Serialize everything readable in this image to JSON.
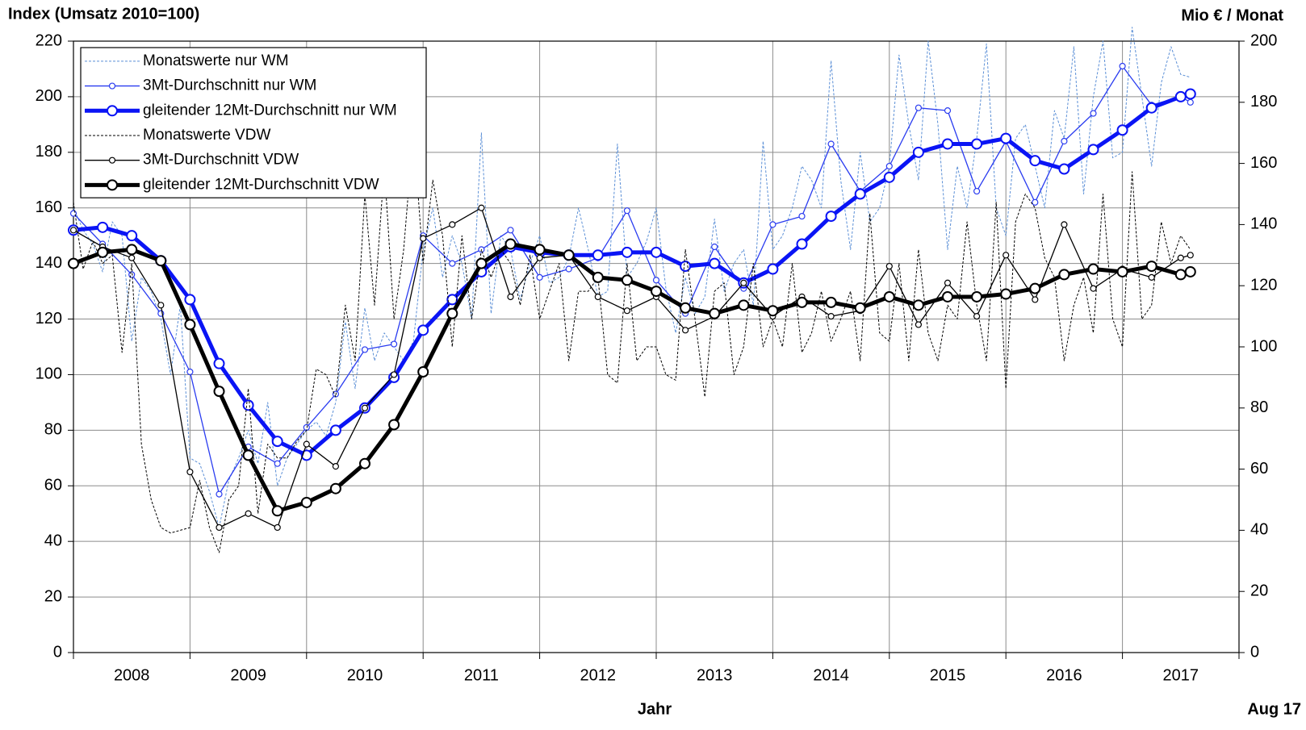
{
  "chart_data": {
    "type": "line",
    "title_left": "Index (Umsatz 2010=100)",
    "title_right": "Mio € / Monat",
    "xlabel": "Jahr",
    "note": "Aug 17",
    "xlim": [
      2008,
      2018
    ],
    "xticks": [
      2008,
      2009,
      2010,
      2011,
      2012,
      2013,
      2014,
      2015,
      2016,
      2017,
      2018
    ],
    "categories": [
      "2008",
      "2009",
      "2010",
      "2011",
      "2012",
      "2013",
      "2014",
      "2015",
      "2016",
      "2017"
    ],
    "ylim": [
      0,
      220
    ],
    "yticks": [
      0,
      20,
      40,
      60,
      80,
      100,
      120,
      140,
      160,
      180,
      200,
      220
    ],
    "y2lim": [
      0,
      200
    ],
    "y2ticks": [
      0,
      20,
      40,
      60,
      80,
      100,
      120,
      140,
      160,
      180,
      200
    ],
    "grid": true,
    "legend": "upper left",
    "series": [
      {
        "name": "Monatswerte  nur WM",
        "color": "#5b8fd6",
        "line_style": "dashed",
        "line_width": 1,
        "marker_size": 0,
        "x": [
          2008,
          2008.083,
          2008.167,
          2008.25,
          2008.333,
          2008.417,
          2008.5,
          2008.583,
          2008.667,
          2008.75,
          2008.833,
          2008.917,
          2009,
          2009.083,
          2009.167,
          2009.25,
          2009.333,
          2009.417,
          2009.5,
          2009.583,
          2009.667,
          2009.75,
          2009.833,
          2009.917,
          2010,
          2010.083,
          2010.167,
          2010.25,
          2010.333,
          2010.417,
          2010.5,
          2010.583,
          2010.667,
          2010.75,
          2010.833,
          2010.917,
          2011,
          2011.083,
          2011.167,
          2011.25,
          2011.333,
          2011.417,
          2011.5,
          2011.583,
          2011.667,
          2011.75,
          2011.833,
          2011.917,
          2012,
          2012.083,
          2012.167,
          2012.25,
          2012.333,
          2012.417,
          2012.5,
          2012.583,
          2012.667,
          2012.75,
          2012.833,
          2012.917,
          2013,
          2013.083,
          2013.167,
          2013.25,
          2013.333,
          2013.417,
          2013.5,
          2013.583,
          2013.667,
          2013.75,
          2013.833,
          2013.917,
          2014,
          2014.083,
          2014.167,
          2014.25,
          2014.333,
          2014.417,
          2014.5,
          2014.583,
          2014.667,
          2014.75,
          2014.833,
          2014.917,
          2015,
          2015.083,
          2015.167,
          2015.25,
          2015.333,
          2015.417,
          2015.5,
          2015.583,
          2015.667,
          2015.75,
          2015.833,
          2015.917,
          2016,
          2016.083,
          2016.167,
          2016.25,
          2016.333,
          2016.417,
          2016.5,
          2016.583,
          2016.667,
          2016.75,
          2016.833,
          2016.917,
          2017,
          2017.083,
          2017.167,
          2017.25,
          2017.333,
          2017.417,
          2017.5,
          2017.583
        ],
        "values": [
          160,
          152,
          147,
          137,
          155,
          150,
          112,
          135,
          130,
          120,
          100,
          125,
          70,
          68,
          58,
          45,
          62,
          70,
          80,
          68,
          90,
          60,
          70,
          75,
          80,
          83,
          78,
          90,
          119,
          95,
          124,
          105,
          115,
          110,
          105,
          112,
          145,
          160,
          135,
          150,
          140,
          120,
          187,
          122,
          150,
          145,
          127,
          140,
          150,
          133,
          135,
          142,
          160,
          145,
          128,
          130,
          183,
          135,
          140,
          148,
          160,
          131,
          115,
          135,
          122,
          128,
          156,
          130,
          140,
          145,
          125,
          184,
          145,
          150,
          160,
          175,
          170,
          160,
          213,
          170,
          145,
          180,
          155,
          160,
          175,
          215,
          190,
          170,
          220,
          190,
          145,
          175,
          160,
          185,
          219,
          160,
          150,
          185,
          190,
          175,
          160,
          195,
          185,
          218,
          165,
          200,
          220,
          178,
          180,
          225,
          200,
          175,
          205,
          218,
          208,
          207
        ]
      },
      {
        "name": "3Mt-Durchschnitt  nur WM",
        "color": "#2a3cf0",
        "line_style": "solid",
        "line_width": 1.3,
        "marker_size": 3.5,
        "x": [
          2008,
          2008.25,
          2008.5,
          2008.75,
          2009,
          2009.25,
          2009.5,
          2009.75,
          2010,
          2010.25,
          2010.5,
          2010.75,
          2011,
          2011.25,
          2011.5,
          2011.75,
          2012,
          2012.25,
          2012.5,
          2012.75,
          2013,
          2013.25,
          2013.5,
          2013.75,
          2014,
          2014.25,
          2014.5,
          2014.75,
          2015,
          2015.25,
          2015.5,
          2015.75,
          2016,
          2016.25,
          2016.5,
          2016.75,
          2017,
          2017.25,
          2017.5,
          2017.583
        ],
        "values": [
          158,
          147,
          136,
          122,
          101,
          57,
          74,
          68,
          81,
          93,
          109,
          111,
          150,
          140,
          145,
          152,
          135,
          138,
          142,
          159,
          134,
          122,
          146,
          131,
          154,
          157,
          183,
          166,
          175,
          196,
          195,
          166,
          184,
          162,
          184,
          194,
          211,
          197,
          200,
          198
        ]
      },
      {
        "name": "gleitender  12Mt-Durchschnitt  nur WM",
        "color": "#0a14f5",
        "line_style": "solid",
        "line_width": 5,
        "marker_size": 6,
        "x": [
          2008,
          2008.25,
          2008.5,
          2008.75,
          2009,
          2009.25,
          2009.5,
          2009.75,
          2010,
          2010.25,
          2010.5,
          2010.75,
          2011,
          2011.25,
          2011.5,
          2011.75,
          2012,
          2012.25,
          2012.5,
          2012.75,
          2013,
          2013.25,
          2013.5,
          2013.75,
          2014,
          2014.25,
          2014.5,
          2014.75,
          2015,
          2015.25,
          2015.5,
          2015.75,
          2016,
          2016.25,
          2016.5,
          2016.75,
          2017,
          2017.25,
          2017.5,
          2017.583
        ],
        "values": [
          152,
          153,
          150,
          141,
          127,
          104,
          89,
          76,
          71,
          80,
          88,
          99,
          116,
          127,
          137,
          146,
          144,
          143,
          143,
          144,
          144,
          139,
          140,
          133,
          138,
          147,
          157,
          165,
          171,
          180,
          183,
          183,
          185,
          177,
          174,
          181,
          188,
          196,
          200,
          201
        ]
      },
      {
        "name": "Monatswerte  VDW",
        "color": "#000000",
        "line_style": "dashed",
        "line_width": 1,
        "marker_size": 0,
        "x": [
          2008,
          2008.083,
          2008.167,
          2008.25,
          2008.333,
          2008.417,
          2008.5,
          2008.583,
          2008.667,
          2008.75,
          2008.833,
          2008.917,
          2009,
          2009.083,
          2009.167,
          2009.25,
          2009.333,
          2009.417,
          2009.5,
          2009.583,
          2009.667,
          2009.75,
          2009.833,
          2009.917,
          2010,
          2010.083,
          2010.167,
          2010.25,
          2010.333,
          2010.417,
          2010.5,
          2010.583,
          2010.667,
          2010.75,
          2010.833,
          2010.917,
          2011,
          2011.083,
          2011.167,
          2011.25,
          2011.333,
          2011.417,
          2011.5,
          2011.583,
          2011.667,
          2011.75,
          2011.833,
          2011.917,
          2012,
          2012.083,
          2012.167,
          2012.25,
          2012.333,
          2012.417,
          2012.5,
          2012.583,
          2012.667,
          2012.75,
          2012.833,
          2012.917,
          2013,
          2013.083,
          2013.167,
          2013.25,
          2013.333,
          2013.417,
          2013.5,
          2013.583,
          2013.667,
          2013.75,
          2013.833,
          2013.917,
          2014,
          2014.083,
          2014.167,
          2014.25,
          2014.333,
          2014.417,
          2014.5,
          2014.583,
          2014.667,
          2014.75,
          2014.833,
          2014.917,
          2015,
          2015.083,
          2015.167,
          2015.25,
          2015.333,
          2015.417,
          2015.5,
          2015.583,
          2015.667,
          2015.75,
          2015.833,
          2015.917,
          2016,
          2016.083,
          2016.167,
          2016.25,
          2016.333,
          2016.417,
          2016.5,
          2016.583,
          2016.667,
          2016.75,
          2016.833,
          2016.917,
          2017,
          2017.083,
          2017.167,
          2017.25,
          2017.333,
          2017.417,
          2017.5,
          2017.583
        ],
        "values": [
          162,
          138,
          148,
          140,
          143,
          108,
          140,
          75,
          55,
          45,
          43,
          44,
          45,
          62,
          45,
          36,
          55,
          60,
          95,
          50,
          75,
          70,
          70,
          76,
          80,
          102,
          100,
          92,
          125,
          105,
          165,
          125,
          175,
          120,
          145,
          188,
          140,
          170,
          150,
          110,
          150,
          120,
          145,
          135,
          145,
          140,
          125,
          143,
          120,
          130,
          140,
          105,
          130,
          130,
          135,
          100,
          97,
          140,
          105,
          110,
          110,
          100,
          98,
          145,
          120,
          92,
          130,
          133,
          100,
          110,
          140,
          110,
          120,
          110,
          140,
          108,
          115,
          130,
          112,
          120,
          130,
          105,
          158,
          115,
          112,
          140,
          105,
          145,
          115,
          105,
          125,
          120,
          155,
          125,
          105,
          162,
          95,
          155,
          165,
          160,
          142,
          135,
          105,
          125,
          135,
          115,
          165,
          120,
          110,
          173,
          120,
          125,
          155,
          140,
          150,
          145
        ]
      },
      {
        "name": "3Mt-Durchschnitt  VDW",
        "color": "#000000",
        "line_style": "solid",
        "line_width": 1.3,
        "marker_size": 3.5,
        "x": [
          2008,
          2008.25,
          2008.5,
          2008.75,
          2009,
          2009.25,
          2009.5,
          2009.75,
          2010,
          2010.25,
          2010.5,
          2010.75,
          2011,
          2011.25,
          2011.5,
          2011.75,
          2012,
          2012.25,
          2012.5,
          2012.75,
          2013,
          2013.25,
          2013.5,
          2013.75,
          2014,
          2014.25,
          2014.5,
          2014.75,
          2015,
          2015.25,
          2015.5,
          2015.75,
          2016,
          2016.25,
          2016.5,
          2016.75,
          2017,
          2017.25,
          2017.5,
          2017.583
        ],
        "values": [
          152,
          146,
          142,
          125,
          65,
          45,
          50,
          45,
          75,
          67,
          88,
          100,
          149,
          154,
          160,
          128,
          142,
          143,
          128,
          123,
          128,
          116,
          121,
          133,
          121,
          128,
          121,
          123,
          139,
          118,
          133,
          121,
          143,
          127,
          154,
          131,
          138,
          135,
          142,
          143
        ]
      },
      {
        "name": "gleitender  12Mt-Durchschnitt  VDW",
        "color": "#000000",
        "line_style": "solid",
        "line_width": 5,
        "marker_size": 6,
        "x": [
          2008,
          2008.25,
          2008.5,
          2008.75,
          2009,
          2009.25,
          2009.5,
          2009.75,
          2010,
          2010.25,
          2010.5,
          2010.75,
          2011,
          2011.25,
          2011.5,
          2011.75,
          2012,
          2012.25,
          2012.5,
          2012.75,
          2013,
          2013.25,
          2013.5,
          2013.75,
          2014,
          2014.25,
          2014.5,
          2014.75,
          2015,
          2015.25,
          2015.5,
          2015.75,
          2016,
          2016.25,
          2016.5,
          2016.75,
          2017,
          2017.25,
          2017.5,
          2017.583
        ],
        "values": [
          140,
          144,
          145,
          141,
          118,
          94,
          71,
          51,
          54,
          59,
          68,
          82,
          101,
          122,
          140,
          147,
          145,
          143,
          135,
          134,
          130,
          124,
          122,
          125,
          123,
          126,
          126,
          124,
          128,
          125,
          128,
          128,
          129,
          131,
          136,
          138,
          137,
          139,
          136,
          137
        ]
      }
    ]
  }
}
